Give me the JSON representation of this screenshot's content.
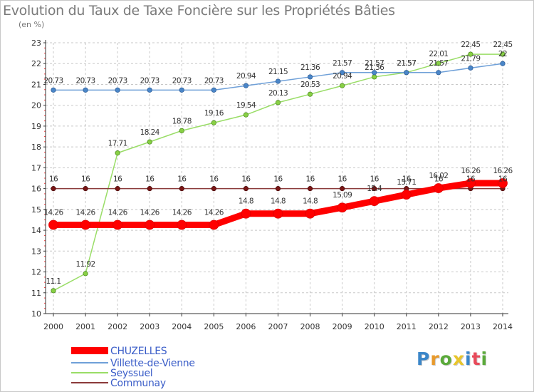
{
  "title": "Evolution du Taux de Taxe Foncière sur les Propriétés Bâties",
  "unit_label": "(en %)",
  "logo": {
    "text": "Proxiti",
    "colors": [
      "#3a86c9",
      "#e89a2c",
      "#5aaa3a",
      "#e8c52c",
      "#3a86c9",
      "#e84a5a",
      "#5aaa3a"
    ]
  },
  "chart_data": {
    "type": "line",
    "title": "Evolution du Taux de Taxe Foncière sur les Propriétés Bâties",
    "ylabel": "(en %)",
    "xlabel": "",
    "x": [
      "2000",
      "2001",
      "2002",
      "2003",
      "2004",
      "2005",
      "2006",
      "2007",
      "2008",
      "2009",
      "2010",
      "2011",
      "2012",
      "2013",
      "2014"
    ],
    "ylim": [
      10,
      23
    ],
    "yticks": [
      "10",
      "11",
      "12",
      "13",
      "14",
      "15",
      "16",
      "17",
      "18",
      "19",
      "20",
      "21",
      "22",
      "23"
    ],
    "grid": "dashed",
    "legend_position": "bottom-left",
    "series": [
      {
        "name": "CHUZELLES",
        "color": "#ff0000",
        "values": [
          14.26,
          14.26,
          14.26,
          14.26,
          14.26,
          14.26,
          14.8,
          14.8,
          14.8,
          15.09,
          15.4,
          15.71,
          16.02,
          16.26,
          16.26
        ],
        "labels": [
          "14.26",
          "14.26",
          "14.26",
          "14.26",
          "14.26",
          "14.26",
          "14.8",
          "14.8",
          "14.8",
          "15.09",
          "15.4",
          "15.71",
          "16.02",
          "16.26",
          "16.26"
        ]
      },
      {
        "name": "Villette-de-Vienne",
        "color": "#6fa0d8",
        "values": [
          20.73,
          20.73,
          20.73,
          20.73,
          20.73,
          20.73,
          20.94,
          21.15,
          21.36,
          21.57,
          21.57,
          21.57,
          21.57,
          21.79,
          22
        ],
        "labels": [
          "20.73",
          "20.73",
          "20.73",
          "20.73",
          "20.73",
          "20.73",
          "20.94",
          "21.15",
          "21.36",
          "21.57",
          "21.57",
          "21.57",
          "21.57",
          "21.79",
          "22"
        ]
      },
      {
        "name": "Seyssuel",
        "color": "#99dd66",
        "values": [
          11.1,
          11.92,
          17.71,
          18.24,
          18.78,
          19.16,
          19.54,
          20.13,
          20.53,
          20.94,
          21.36,
          21.57,
          22.01,
          22.45,
          22.45
        ],
        "labels": [
          "11.1",
          "11.92",
          "17.71",
          "18.24",
          "18.78",
          "19.16",
          "19.54",
          "20.13",
          "20.53",
          "20.94",
          "21.36",
          "21.57",
          "22.01",
          "22.45",
          "22.45"
        ]
      },
      {
        "name": "Communay",
        "color": "#8b3a3a",
        "values": [
          16,
          16,
          16,
          16,
          16,
          16,
          16,
          16,
          16,
          16,
          16,
          16,
          16,
          16,
          16
        ],
        "labels": [
          "16",
          "16",
          "16",
          "16",
          "16",
          "16",
          "16",
          "16",
          "16",
          "16",
          "16",
          "16",
          "16",
          "16",
          "16"
        ]
      }
    ]
  }
}
